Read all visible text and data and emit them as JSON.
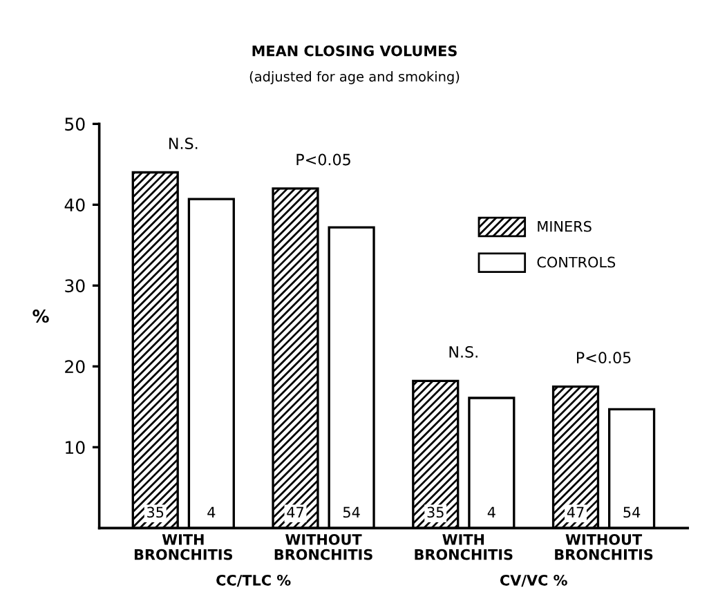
{
  "chart_data": {
    "type": "bar",
    "title": "MEAN CLOSING VOLUMES",
    "subtitle": "(adjusted for age and smoking)",
    "ylabel": "%",
    "categories": [
      "WITH\nBRONCHITIS",
      "WITHOUT\nBRONCHITIS",
      "WITH\nBRONCHITIS",
      "WITHOUT\nBRONCHITIS"
    ],
    "series": [
      {
        "name": "MINERS",
        "color": "#000000",
        "values": [
          44,
          42,
          18.2,
          17.5
        ]
      },
      {
        "name": "CONTROLS",
        "color": "#ffffff",
        "values": [
          40.7,
          37.2,
          16.1,
          14.7
        ]
      }
    ],
    "annotations": [
      "N.S.",
      "P<0.05",
      "N.S.",
      "P<0.05",
      "35",
      "4",
      "47",
      "54",
      "35",
      "4",
      "47",
      "54",
      "CC/TLC %",
      "CV/VC %"
    ],
    "ylim": [
      0,
      50
    ],
    "yticks": [
      10,
      20,
      30,
      40,
      50
    ],
    "legend": "top right",
    "grid": false
  }
}
